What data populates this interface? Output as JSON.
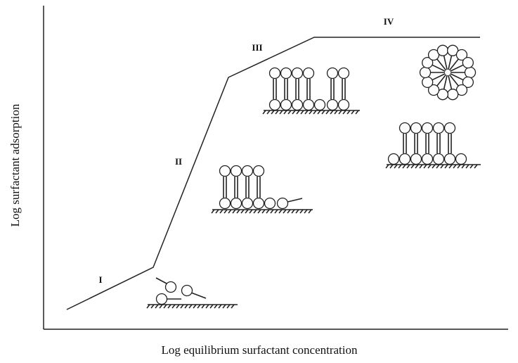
{
  "axes": {
    "x_label": "Log equilibrium surfactant concentration",
    "y_label": "Log surfactant adsorption"
  },
  "regions": [
    {
      "label": "I"
    },
    {
      "label": "II"
    },
    {
      "label": "III"
    },
    {
      "label": "IV"
    }
  ]
}
